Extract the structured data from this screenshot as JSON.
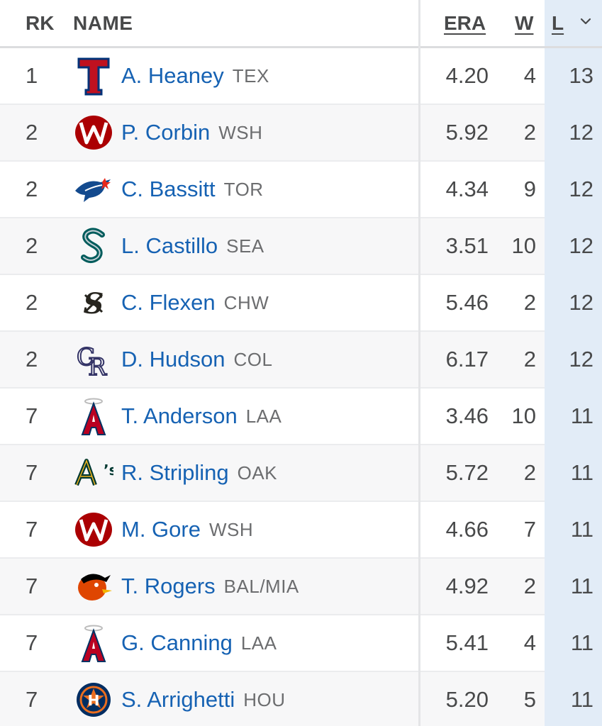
{
  "columns": {
    "rk": "RK",
    "name": "NAME",
    "era": "ERA",
    "w": "W",
    "l": "L"
  },
  "sort_icon": "chevron-down-icon",
  "colors": {
    "link": "#1662b3",
    "sorted_column_bg": "#e2ecf7"
  },
  "rows": [
    {
      "rk": "1",
      "name": "A. Heaney",
      "team": "TEX",
      "logo": "texas-rangers-logo",
      "era": "4.20",
      "w": "4",
      "l": "13"
    },
    {
      "rk": "2",
      "name": "P. Corbin",
      "team": "WSH",
      "logo": "washington-nationals-logo",
      "era": "5.92",
      "w": "2",
      "l": "12"
    },
    {
      "rk": "2",
      "name": "C. Bassitt",
      "team": "TOR",
      "logo": "toronto-blue-jays-logo",
      "era": "4.34",
      "w": "9",
      "l": "12"
    },
    {
      "rk": "2",
      "name": "L. Castillo",
      "team": "SEA",
      "logo": "seattle-mariners-logo",
      "era": "3.51",
      "w": "10",
      "l": "12"
    },
    {
      "rk": "2",
      "name": "C. Flexen",
      "team": "CHW",
      "logo": "chicago-white-sox-logo",
      "era": "5.46",
      "w": "2",
      "l": "12"
    },
    {
      "rk": "2",
      "name": "D. Hudson",
      "team": "COL",
      "logo": "colorado-rockies-logo",
      "era": "6.17",
      "w": "2",
      "l": "12"
    },
    {
      "rk": "7",
      "name": "T. Anderson",
      "team": "LAA",
      "logo": "los-angeles-angels-logo",
      "era": "3.46",
      "w": "10",
      "l": "11"
    },
    {
      "rk": "7",
      "name": "R. Stripling",
      "team": "OAK",
      "logo": "oakland-athletics-logo",
      "era": "5.72",
      "w": "2",
      "l": "11"
    },
    {
      "rk": "7",
      "name": "M. Gore",
      "team": "WSH",
      "logo": "washington-nationals-logo",
      "era": "4.66",
      "w": "7",
      "l": "11"
    },
    {
      "rk": "7",
      "name": "T. Rogers",
      "team": "BAL/MIA",
      "logo": "baltimore-orioles-logo",
      "era": "4.92",
      "w": "2",
      "l": "11"
    },
    {
      "rk": "7",
      "name": "G. Canning",
      "team": "LAA",
      "logo": "los-angeles-angels-logo",
      "era": "5.41",
      "w": "4",
      "l": "11"
    },
    {
      "rk": "7",
      "name": "S. Arrighetti",
      "team": "HOU",
      "logo": "houston-astros-logo",
      "era": "5.20",
      "w": "5",
      "l": "11"
    }
  ]
}
